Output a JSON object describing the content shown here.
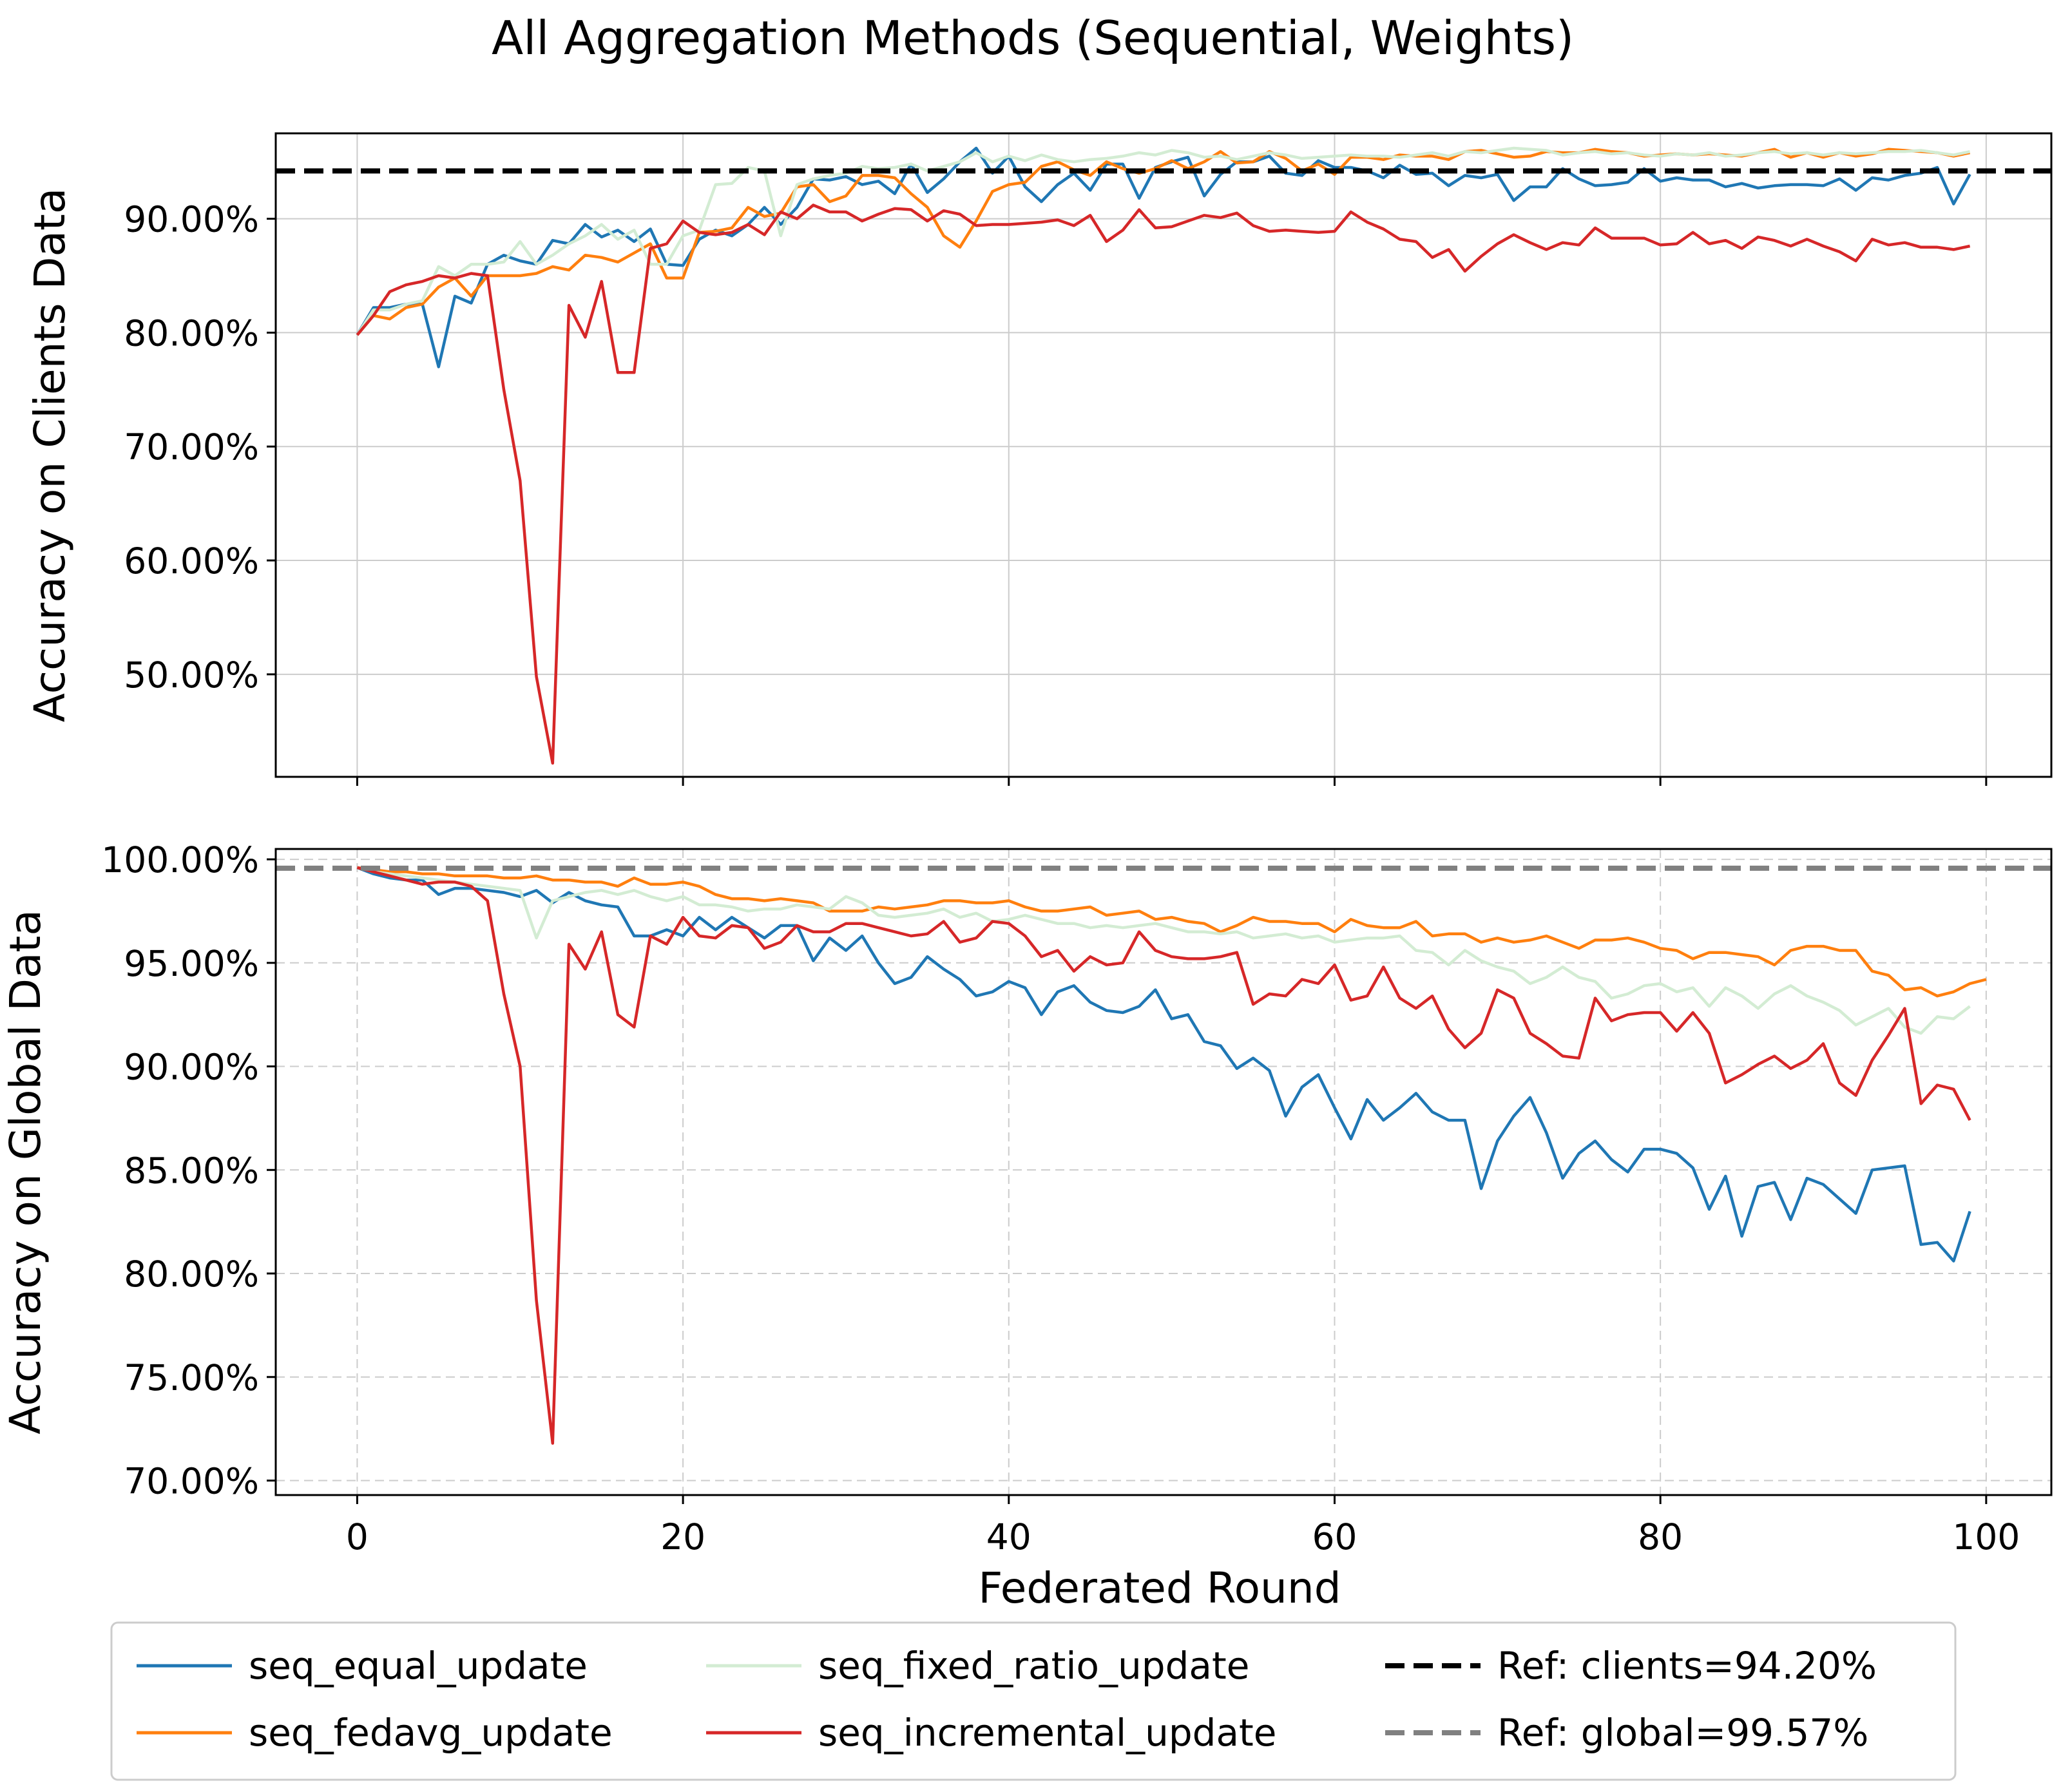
{
  "title": "All Aggregation Methods (Sequential, Weights)",
  "xlabel": "Federated Round",
  "colors": {
    "seq_equal_update": "#1f77b4",
    "seq_fedavg_update": "#ff7f0e",
    "seq_fixed_ratio_update": "#d3ecd3",
    "seq_incremental_update": "#d62728",
    "ref_clients": "#000000",
    "ref_global": "#808080",
    "grid": "#cccccc"
  },
  "legend": {
    "placement": "bottom-center",
    "entries": [
      {
        "label": "seq_equal_update",
        "series": "seq_equal_update",
        "dashed": false
      },
      {
        "label": "seq_fedavg_update",
        "series": "seq_fedavg_update",
        "dashed": false
      },
      {
        "label": "seq_fixed_ratio_update",
        "series": "seq_fixed_ratio_update",
        "dashed": false
      },
      {
        "label": "seq_incremental_update",
        "series": "seq_incremental_update",
        "dashed": false
      },
      {
        "label": "Ref: clients=94.20%",
        "series": "ref_clients",
        "dashed": true
      },
      {
        "label": "Ref: global=99.57%",
        "series": "ref_global",
        "dashed": true
      }
    ]
  },
  "chart_data": [
    {
      "type": "line",
      "ylabel": "Accuracy on Clients Data",
      "xlim": [
        -5,
        104
      ],
      "ylim": [
        41,
        97.5
      ],
      "xticks": [
        0,
        20,
        40,
        60,
        80,
        100
      ],
      "yticks": [
        50,
        60,
        70,
        80,
        90
      ],
      "ytick_labels": [
        "50.00%",
        "60.00%",
        "70.00%",
        "80.00%",
        "90.00%"
      ],
      "grid": true,
      "grid_style": "solid",
      "show_xtick_labels": false,
      "reference": {
        "name": "Ref: clients=94.20%",
        "value": 94.2,
        "color_key": "ref_clients"
      },
      "series": [
        {
          "name": "seq_equal_update",
          "color_key": "seq_equal_update",
          "values": [
            79.8,
            82.2,
            82.2,
            82.5,
            82.5,
            77.0,
            83.2,
            82.6,
            86.0,
            86.8,
            86.3,
            86.0,
            88.1,
            87.8,
            89.5,
            88.4,
            89.0,
            88.0,
            89.1,
            86.0,
            85.9,
            88.2,
            89.0,
            88.5,
            89.5,
            91.0,
            89.5,
            91.0,
            93.5,
            93.4,
            93.7,
            93.0,
            93.3,
            92.2,
            94.8,
            92.3,
            93.5,
            95.0,
            96.2,
            94.0,
            95.5,
            92.8,
            91.5,
            93.0,
            94.0,
            92.5,
            94.8,
            94.8,
            91.8,
            94.5,
            95.0,
            95.4,
            92.0,
            93.9,
            95.0,
            95.0,
            95.5,
            94.0,
            93.8,
            95.1,
            94.5,
            94.5,
            94.2,
            93.6,
            94.7,
            93.9,
            94.0,
            92.9,
            93.8,
            93.6,
            93.9,
            91.6,
            92.8,
            92.8,
            94.4,
            93.5,
            92.9,
            93.0,
            93.2,
            94.4,
            93.3,
            93.6,
            93.4,
            93.4,
            92.8,
            93.1,
            92.7,
            92.9,
            93.0,
            93.0,
            92.9,
            93.5,
            92.5,
            93.6,
            93.4,
            93.8,
            94.0,
            94.5,
            91.3,
            93.9
          ]
        },
        {
          "name": "seq_fedavg_update",
          "color_key": "seq_fedavg_update",
          "values": [
            79.8,
            81.5,
            81.2,
            82.2,
            82.5,
            84.0,
            84.8,
            83.2,
            85.0,
            85.0,
            85.0,
            85.2,
            85.8,
            85.5,
            86.8,
            86.6,
            86.2,
            87.0,
            87.8,
            84.8,
            84.8,
            88.8,
            88.9,
            89.2,
            91.0,
            90.2,
            90.5,
            92.8,
            93.0,
            91.5,
            92.0,
            93.8,
            93.8,
            93.6,
            92.2,
            91.0,
            88.5,
            87.5,
            89.8,
            92.4,
            93.0,
            93.2,
            94.6,
            95.0,
            94.3,
            93.8,
            95.0,
            94.4,
            94.0,
            94.4,
            95.1,
            94.4,
            95.0,
            95.9,
            94.9,
            95.0,
            95.9,
            95.3,
            94.2,
            94.8,
            93.9,
            95.4,
            95.4,
            95.2,
            95.6,
            95.5,
            95.5,
            95.2,
            95.9,
            96.0,
            95.7,
            95.4,
            95.5,
            95.9,
            95.8,
            95.8,
            96.1,
            95.9,
            95.8,
            95.5,
            95.6,
            95.7,
            95.6,
            95.7,
            95.6,
            95.5,
            95.8,
            96.1,
            95.4,
            95.8,
            95.4,
            95.8,
            95.5,
            95.7,
            96.1,
            96.0,
            95.9,
            95.8,
            95.5,
            95.8
          ]
        },
        {
          "name": "seq_fixed_ratio_update",
          "color_key": "seq_fixed_ratio_update",
          "values": [
            79.8,
            82.0,
            82.0,
            82.5,
            82.8,
            85.8,
            85.0,
            86.0,
            86.0,
            86.2,
            88.0,
            86.0,
            86.8,
            87.8,
            88.5,
            89.5,
            88.2,
            89.0,
            86.0,
            86.0,
            88.5,
            89.0,
            93.0,
            93.1,
            94.5,
            94.2,
            88.5,
            93.0,
            93.5,
            93.8,
            94.0,
            94.6,
            94.4,
            94.5,
            94.8,
            94.2,
            94.6,
            95.0,
            95.8,
            95.0,
            95.5,
            95.1,
            95.6,
            95.2,
            95.0,
            95.2,
            95.3,
            95.5,
            95.8,
            95.6,
            96.0,
            95.8,
            95.4,
            95.5,
            95.2,
            95.5,
            95.8,
            95.6,
            95.3,
            95.4,
            95.5,
            95.6,
            95.5,
            95.5,
            95.4,
            95.6,
            95.8,
            95.5,
            95.9,
            95.8,
            96.0,
            96.2,
            96.1,
            96.0,
            95.6,
            95.8,
            95.9,
            95.7,
            95.8,
            95.6,
            95.5,
            95.7,
            95.6,
            95.8,
            95.5,
            95.6,
            95.8,
            95.9,
            95.7,
            95.8,
            95.6,
            95.8,
            95.7,
            95.8,
            95.9,
            95.9,
            96.0,
            95.8,
            95.6,
            95.9
          ]
        },
        {
          "name": "seq_incremental_update",
          "color_key": "seq_incremental_update",
          "values": [
            79.8,
            81.5,
            83.6,
            84.2,
            84.5,
            85.0,
            84.8,
            85.2,
            85.0,
            75.0,
            67.0,
            49.8,
            42.2,
            82.4,
            79.6,
            84.5,
            76.5,
            76.5,
            87.4,
            87.8,
            89.8,
            88.8,
            88.6,
            88.8,
            89.5,
            88.6,
            90.6,
            90.0,
            91.2,
            90.6,
            90.6,
            89.8,
            90.4,
            90.9,
            90.8,
            89.8,
            90.7,
            90.4,
            89.4,
            89.5,
            89.5,
            89.6,
            89.7,
            89.9,
            89.4,
            90.3,
            88.0,
            89.0,
            90.8,
            89.2,
            89.3,
            89.8,
            90.3,
            90.1,
            90.5,
            89.4,
            88.9,
            89.0,
            88.9,
            88.8,
            88.9,
            90.6,
            89.7,
            89.1,
            88.2,
            88.0,
            86.6,
            87.3,
            85.4,
            86.7,
            87.8,
            88.6,
            87.9,
            87.3,
            87.9,
            87.7,
            89.2,
            88.3,
            88.3,
            88.3,
            87.7,
            87.8,
            88.8,
            87.8,
            88.1,
            87.4,
            88.4,
            88.1,
            87.6,
            88.2,
            87.6,
            87.1,
            86.3,
            88.2,
            87.7,
            87.9,
            87.5,
            87.5,
            87.3,
            87.6
          ]
        }
      ]
    },
    {
      "type": "line",
      "ylabel": "Accuracy on Global Data",
      "xlim": [
        -5,
        104
      ],
      "ylim": [
        69.3,
        100.5
      ],
      "xticks": [
        0,
        20,
        40,
        60,
        80,
        100
      ],
      "xtick_labels": [
        "0",
        "20",
        "40",
        "60",
        "80",
        "100"
      ],
      "yticks": [
        70,
        75,
        80,
        85,
        90,
        95,
        100
      ],
      "ytick_labels": [
        "70.00%",
        "75.00%",
        "80.00%",
        "85.00%",
        "90.00%",
        "95.00%",
        "100.00%"
      ],
      "grid": true,
      "grid_style": "dashed",
      "show_xtick_labels": true,
      "reference": {
        "name": "Ref: global=99.57%",
        "value": 99.57,
        "color_key": "ref_global"
      },
      "series": [
        {
          "name": "seq_equal_update",
          "color_key": "seq_equal_update",
          "values": [
            99.6,
            99.3,
            99.1,
            99.0,
            99.0,
            98.3,
            98.6,
            98.6,
            98.5,
            98.4,
            98.2,
            98.5,
            97.9,
            98.4,
            98.0,
            97.8,
            97.7,
            96.3,
            96.3,
            96.6,
            96.3,
            97.2,
            96.6,
            97.2,
            96.7,
            96.2,
            96.8,
            96.8,
            95.1,
            96.2,
            95.6,
            96.3,
            95.0,
            94.0,
            94.3,
            95.3,
            94.7,
            94.2,
            93.4,
            93.6,
            94.1,
            93.8,
            92.5,
            93.6,
            93.9,
            93.1,
            92.7,
            92.6,
            92.9,
            93.7,
            92.3,
            92.5,
            91.2,
            91.0,
            89.9,
            90.4,
            89.8,
            87.6,
            89.0,
            89.6,
            88.0,
            86.5,
            88.4,
            87.4,
            88.0,
            88.7,
            87.8,
            87.4,
            87.4,
            84.1,
            86.4,
            87.6,
            88.5,
            86.8,
            84.6,
            85.8,
            86.4,
            85.5,
            84.9,
            86.0,
            86.0,
            85.8,
            85.1,
            83.1,
            84.7,
            81.8,
            84.2,
            84.4,
            82.6,
            84.6,
            84.3,
            83.6,
            82.9,
            85.0,
            85.1,
            85.2,
            81.4,
            81.5,
            80.6,
            83.0
          ]
        },
        {
          "name": "seq_fedavg_update",
          "color_key": "seq_fedavg_update",
          "values": [
            99.6,
            99.5,
            99.4,
            99.4,
            99.3,
            99.3,
            99.2,
            99.2,
            99.2,
            99.1,
            99.1,
            99.2,
            99.0,
            99.0,
            98.9,
            98.9,
            98.7,
            99.1,
            98.8,
            98.8,
            98.9,
            98.7,
            98.3,
            98.1,
            98.1,
            98.0,
            98.1,
            98.0,
            97.9,
            97.5,
            97.5,
            97.5,
            97.7,
            97.6,
            97.7,
            97.8,
            98.0,
            98.0,
            97.9,
            97.9,
            98.0,
            97.7,
            97.5,
            97.5,
            97.6,
            97.7,
            97.3,
            97.4,
            97.5,
            97.1,
            97.2,
            97.0,
            96.9,
            96.5,
            96.8,
            97.2,
            97.0,
            97.0,
            96.9,
            96.9,
            96.5,
            97.1,
            96.8,
            96.7,
            96.7,
            97.0,
            96.3,
            96.4,
            96.4,
            96.0,
            96.2,
            96.0,
            96.1,
            96.3,
            96.0,
            95.7,
            96.1,
            96.1,
            96.2,
            96.0,
            95.7,
            95.6,
            95.2,
            95.5,
            95.5,
            95.4,
            95.3,
            94.9,
            95.6,
            95.8,
            95.8,
            95.6,
            95.6,
            94.6,
            94.4,
            93.7,
            93.8,
            93.4,
            93.6,
            94.0,
            94.2
          ]
        },
        {
          "name": "seq_fixed_ratio_update",
          "color_key": "seq_fixed_ratio_update",
          "values": [
            99.6,
            99.4,
            99.3,
            99.2,
            99.1,
            99.0,
            98.9,
            98.8,
            98.7,
            98.6,
            98.5,
            96.2,
            98.0,
            98.2,
            98.4,
            98.5,
            98.3,
            98.5,
            98.2,
            98.0,
            98.2,
            97.8,
            97.8,
            97.7,
            97.5,
            97.6,
            97.6,
            97.8,
            97.7,
            97.6,
            98.2,
            97.9,
            97.3,
            97.2,
            97.3,
            97.4,
            97.6,
            97.2,
            97.4,
            97.0,
            97.1,
            97.3,
            97.1,
            96.9,
            96.9,
            96.7,
            96.8,
            96.7,
            96.8,
            96.9,
            96.7,
            96.5,
            96.5,
            96.4,
            96.5,
            96.2,
            96.3,
            96.4,
            96.2,
            96.3,
            96.0,
            96.1,
            96.2,
            96.2,
            96.3,
            95.6,
            95.5,
            94.9,
            95.6,
            95.1,
            94.8,
            94.6,
            94.0,
            94.3,
            94.8,
            94.3,
            94.1,
            93.3,
            93.5,
            93.9,
            94.0,
            93.6,
            93.8,
            92.9,
            93.8,
            93.4,
            92.8,
            93.5,
            93.9,
            93.4,
            93.1,
            92.7,
            92.0,
            92.4,
            92.8,
            91.9,
            91.6,
            92.4,
            92.3,
            92.9
          ]
        },
        {
          "name": "seq_incremental_update",
          "color_key": "seq_incremental_update",
          "values": [
            99.6,
            99.4,
            99.2,
            99.0,
            98.8,
            98.9,
            98.9,
            98.7,
            98.0,
            93.5,
            90.0,
            78.7,
            71.8,
            95.9,
            94.7,
            96.5,
            92.5,
            91.9,
            96.3,
            95.9,
            97.2,
            96.3,
            96.2,
            96.8,
            96.7,
            95.7,
            96.0,
            96.8,
            96.5,
            96.5,
            96.9,
            96.9,
            96.7,
            96.5,
            96.3,
            96.4,
            97.0,
            96.0,
            96.2,
            97.0,
            96.9,
            96.3,
            95.3,
            95.6,
            94.6,
            95.3,
            94.9,
            95.0,
            96.5,
            95.6,
            95.3,
            95.2,
            95.2,
            95.3,
            95.5,
            93.0,
            93.5,
            93.4,
            94.2,
            94.0,
            94.9,
            93.2,
            93.4,
            94.8,
            93.3,
            92.8,
            93.4,
            91.8,
            90.9,
            91.6,
            93.7,
            93.3,
            91.6,
            91.1,
            90.5,
            90.4,
            93.3,
            92.2,
            92.5,
            92.6,
            92.6,
            91.7,
            92.6,
            91.6,
            89.2,
            89.6,
            90.1,
            90.5,
            89.9,
            90.3,
            91.1,
            89.2,
            88.6,
            90.3,
            91.5,
            92.8,
            88.2,
            89.1,
            88.9,
            87.4
          ]
        }
      ]
    }
  ]
}
